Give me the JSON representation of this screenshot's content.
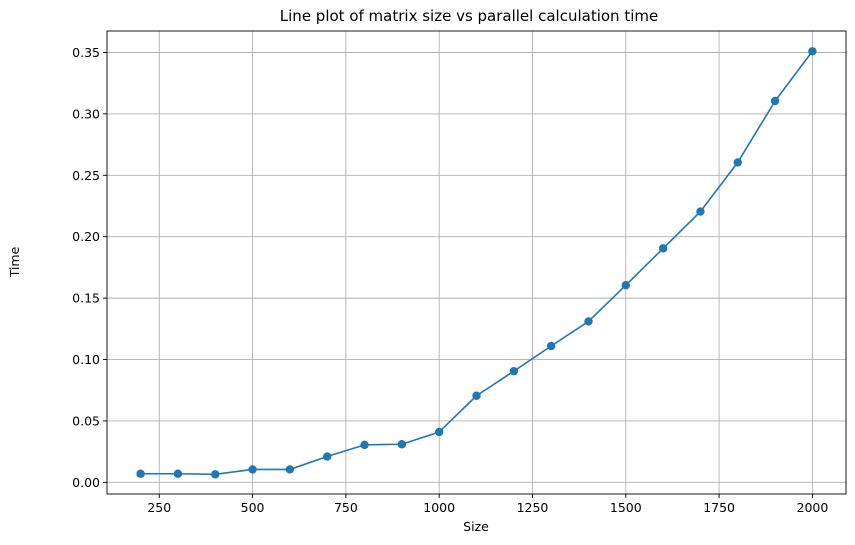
{
  "chart_data": {
    "type": "line",
    "title": "Line plot of matrix size vs parallel calculation time",
    "xlabel": "Size",
    "ylabel": "Time",
    "xlim": [
      110,
      2090
    ],
    "ylim": [
      -0.0095,
      0.3675
    ],
    "xticks": [
      250,
      500,
      750,
      1000,
      1250,
      1500,
      1750,
      2000
    ],
    "xtick_labels": [
      "250",
      "500",
      "750",
      "1000",
      "1250",
      "1500",
      "1750",
      "2000"
    ],
    "yticks": [
      0.0,
      0.05,
      0.1,
      0.15,
      0.2,
      0.25,
      0.3,
      0.35
    ],
    "ytick_labels": [
      "0.00",
      "0.05",
      "0.10",
      "0.15",
      "0.20",
      "0.25",
      "0.30",
      "0.35"
    ],
    "grid": true,
    "color": "#1f77b4",
    "marker": "circle",
    "x": [
      200,
      300,
      400,
      500,
      600,
      700,
      800,
      900,
      1000,
      1100,
      1200,
      1300,
      1400,
      1500,
      1600,
      1700,
      1800,
      1900,
      2000
    ],
    "y": [
      0.007,
      0.007,
      0.0065,
      0.0105,
      0.0105,
      0.021,
      0.0305,
      0.031,
      0.041,
      0.0705,
      0.0905,
      0.111,
      0.131,
      0.1605,
      0.1905,
      0.2205,
      0.2605,
      0.3105,
      0.351
    ]
  }
}
